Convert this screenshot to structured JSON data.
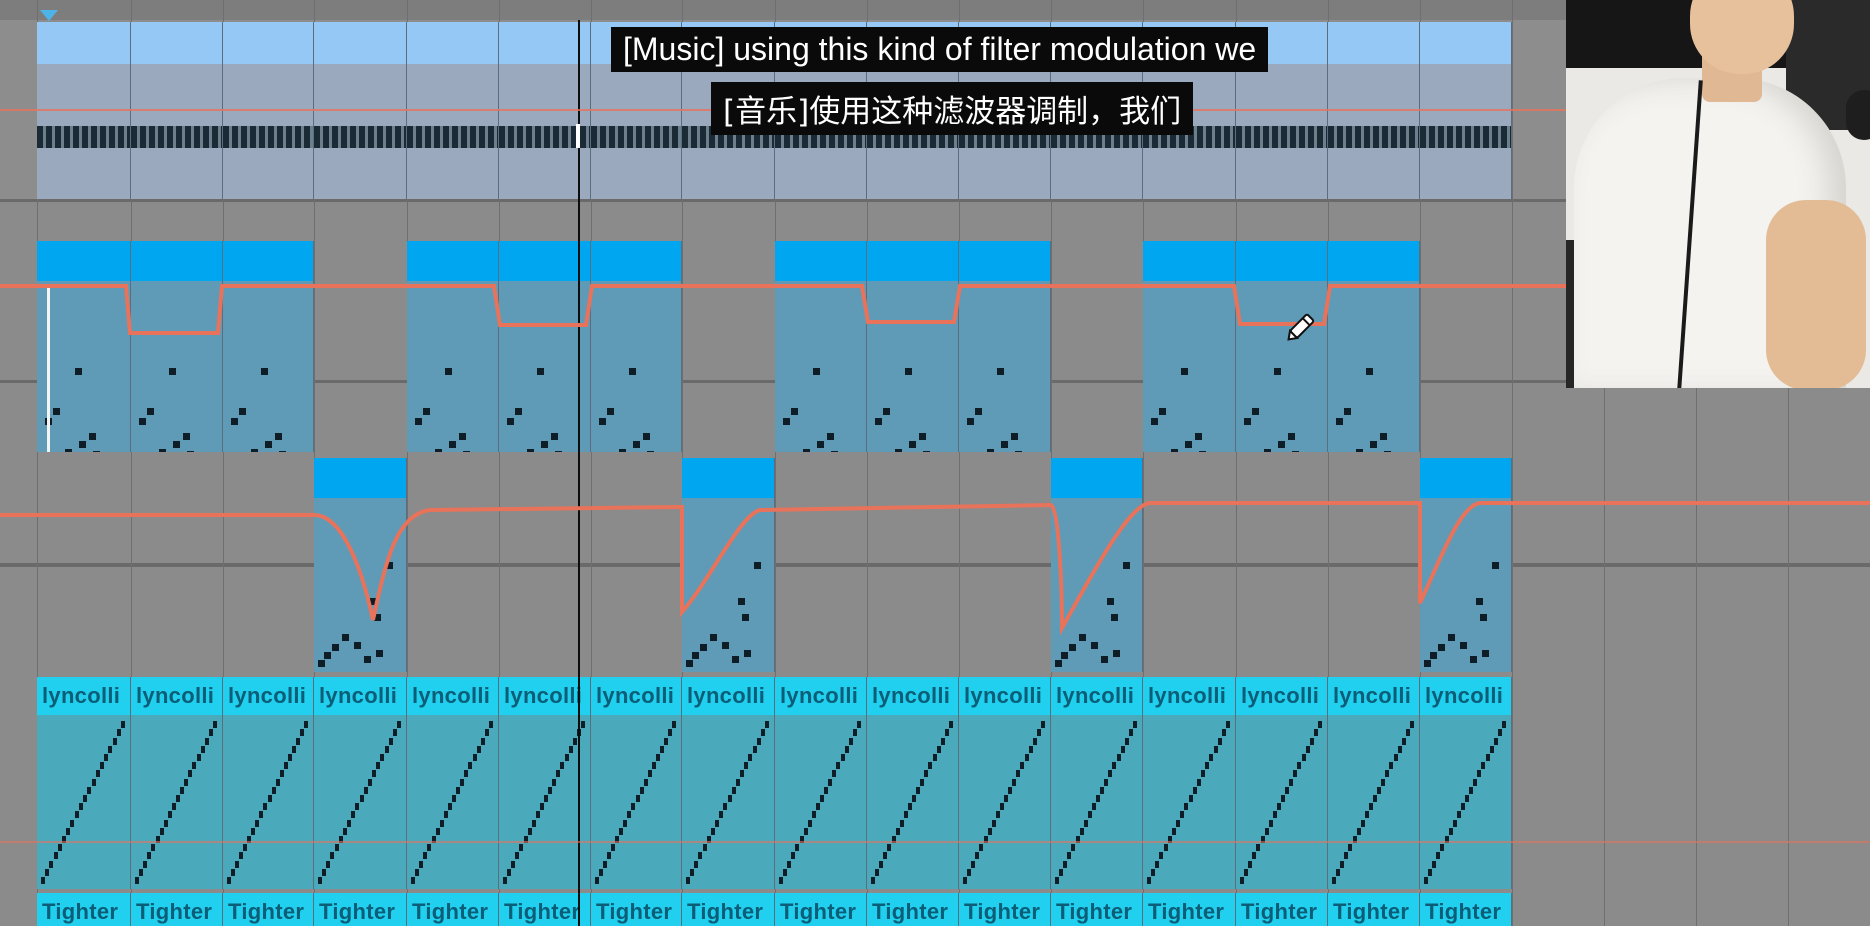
{
  "subtitles": {
    "english": "[Music] using this kind of filter modulation we",
    "chinese": "[音乐]使用这种滤波器调制，我们"
  },
  "clips": {
    "count": 16,
    "lane3_label": "lyncolli",
    "lane4_label": "Tighter",
    "lane2_active": [
      0,
      1,
      2,
      4,
      5,
      6,
      8,
      9,
      10,
      12,
      13,
      14
    ],
    "lane3_active": [
      3,
      7,
      11,
      15
    ]
  },
  "webcam": {
    "label": "presenter webcam overlay"
  },
  "cursor": {
    "tool": "pencil-tool"
  },
  "colors": {
    "track_bg": "#8c8c8c",
    "clip_header": "#00a6f0",
    "clip_body": "#5f9bb7",
    "clip_header_light": "#95c8f4",
    "clip_body_light": "#9aa9bd",
    "cyan_header": "#20d0ee",
    "cyan_body": "#4aa9ba",
    "automation": "#e8735a",
    "note": "#0f1d26"
  }
}
